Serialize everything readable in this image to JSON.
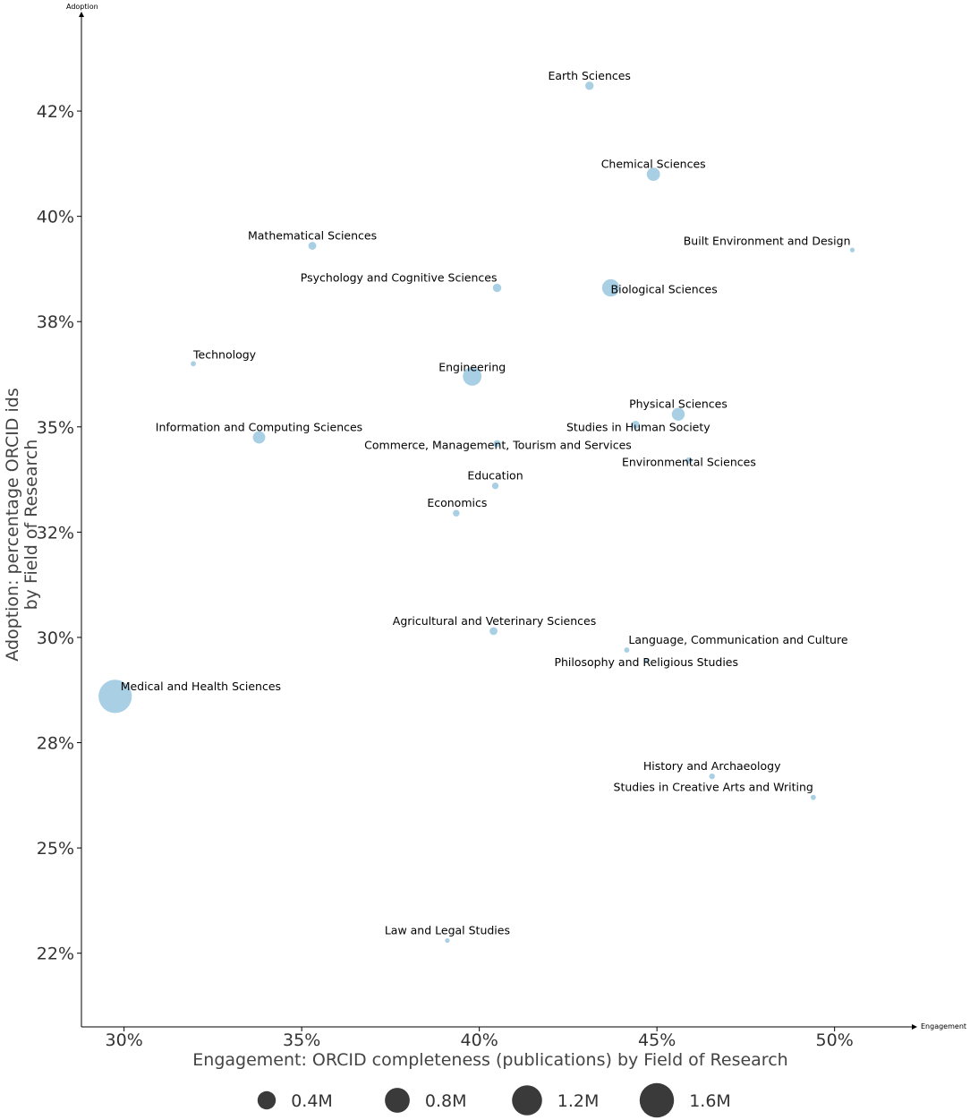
{
  "chart_data": {
    "type": "scatter",
    "bubble": true,
    "title": "",
    "x_arrow_label": "Engagement",
    "y_arrow_label": "Adoption",
    "xlabel": "Engagement: ORCID completeness (publications) by Field of Research",
    "ylabel_lines": [
      "Adoption: percentage ORCID ids",
      "by Field of Research"
    ],
    "xlim": [
      28.8,
      52.2
    ],
    "ylim": [
      20.75,
      44.5
    ],
    "x_ticks": [
      30,
      35,
      40,
      45,
      50
    ],
    "x_tick_labels": [
      "30%",
      "35%",
      "40%",
      "45%",
      "50%"
    ],
    "y_ticks": [
      22.5,
      25,
      27.5,
      30,
      32.5,
      35,
      37.5,
      40,
      42.5
    ],
    "y_tick_labels": [
      "22%",
      "25%",
      "28%",
      "30%",
      "32%",
      "35%",
      "38%",
      "40%",
      "42%"
    ],
    "bubble_color": "#9ecae1",
    "legend_color": "#3a3a3a",
    "size_unit": "M publications",
    "legend": [
      {
        "size": 0.4,
        "label": "0.4M"
      },
      {
        "size": 0.8,
        "label": "0.8M"
      },
      {
        "size": 1.2,
        "label": "1.2M"
      },
      {
        "size": 1.6,
        "label": "1.6M"
      }
    ],
    "points": [
      {
        "label": "Earth Sciences",
        "x": 43.1,
        "y": 43.1,
        "size": 0.06
      },
      {
        "label": "Chemical Sciences",
        "x": 44.9,
        "y": 41.0,
        "size": 0.19
      },
      {
        "label": "Built Environment and Design",
        "x": 50.5,
        "y": 39.2,
        "size": 0.01
      },
      {
        "label": "Mathematical Sciences",
        "x": 35.3,
        "y": 39.3,
        "size": 0.05
      },
      {
        "label": "Psychology and Cognitive Sciences",
        "x": 40.5,
        "y": 38.3,
        "size": 0.06
      },
      {
        "label": "Biological Sciences",
        "x": 43.7,
        "y": 38.3,
        "size": 0.36
      },
      {
        "label": "Technology",
        "x": 31.95,
        "y": 36.5,
        "size": 0.015
      },
      {
        "label": "Engineering",
        "x": 39.8,
        "y": 36.2,
        "size": 0.42
      },
      {
        "label": "Physical Sciences",
        "x": 45.6,
        "y": 35.3,
        "size": 0.18
      },
      {
        "label": "Studies in Human Society",
        "x": 44.4,
        "y": 35.05,
        "size": 0.05
      },
      {
        "label": "Information and Computing Sciences",
        "x": 33.8,
        "y": 34.75,
        "size": 0.16
      },
      {
        "label": "Commerce, Management, Tourism and Services",
        "x": 40.5,
        "y": 34.6,
        "size": 0.04
      },
      {
        "label": "Environmental Sciences",
        "x": 45.9,
        "y": 34.2,
        "size": 0.03
      },
      {
        "label": "Education",
        "x": 40.45,
        "y": 33.6,
        "size": 0.03
      },
      {
        "label": "Economics",
        "x": 39.35,
        "y": 32.95,
        "size": 0.03
      },
      {
        "label": "Agricultural and Veterinary Sciences",
        "x": 40.4,
        "y": 30.15,
        "size": 0.05
      },
      {
        "label": "Language, Communication and Culture",
        "x": 44.15,
        "y": 29.7,
        "size": 0.015
      },
      {
        "label": "Philosophy and Religious Studies",
        "x": 44.7,
        "y": 29.45,
        "size": 0.015
      },
      {
        "label": "Medical and Health Sciences",
        "x": 29.75,
        "y": 28.6,
        "size": 1.5
      },
      {
        "label": "History and Archaeology",
        "x": 46.55,
        "y": 26.7,
        "size": 0.02
      },
      {
        "label": "Studies in Creative Arts and Writing",
        "x": 49.4,
        "y": 26.2,
        "size": 0.015
      },
      {
        "label": "Law and Legal Studies",
        "x": 39.1,
        "y": 22.8,
        "size": 0.01
      }
    ]
  }
}
